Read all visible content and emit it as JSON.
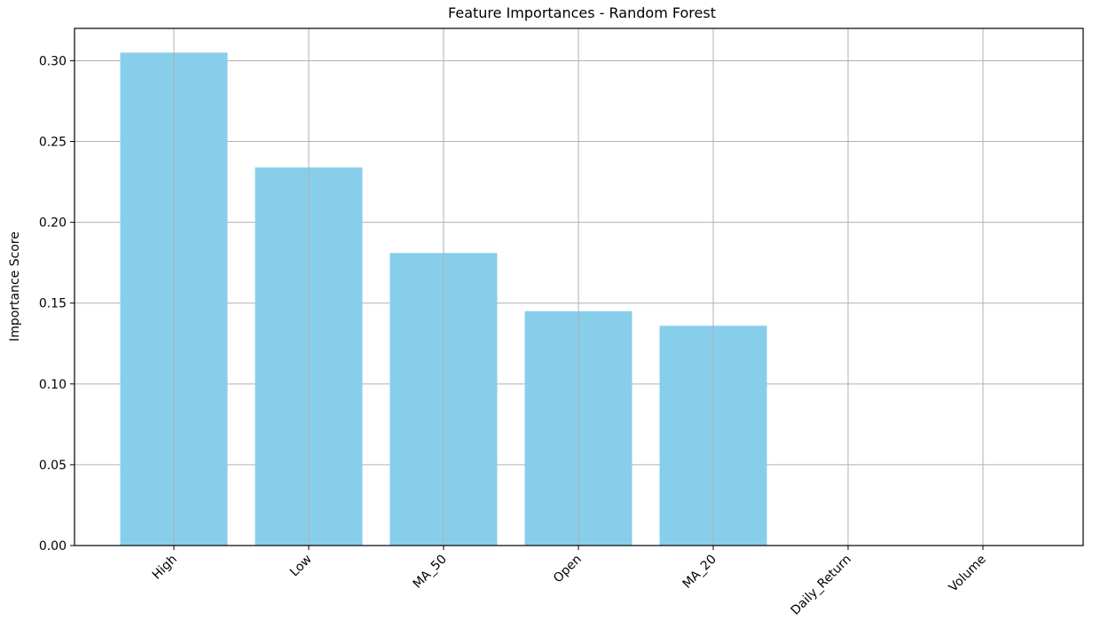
{
  "chart_data": {
    "type": "bar",
    "title": "Feature Importances - Random Forest",
    "xlabel": "",
    "ylabel": "Importance Score",
    "categories": [
      "High",
      "Low",
      "MA_50",
      "Open",
      "MA_20",
      "Daily_Return",
      "Volume"
    ],
    "values": [
      0.305,
      0.234,
      0.181,
      0.145,
      0.136,
      0.0,
      0.0
    ],
    "ylim": [
      0,
      0.32
    ],
    "yticks": [
      "0.00",
      "0.05",
      "0.10",
      "0.15",
      "0.20",
      "0.25",
      "0.30"
    ],
    "grid": true,
    "bar_color": "#87ceeb"
  }
}
